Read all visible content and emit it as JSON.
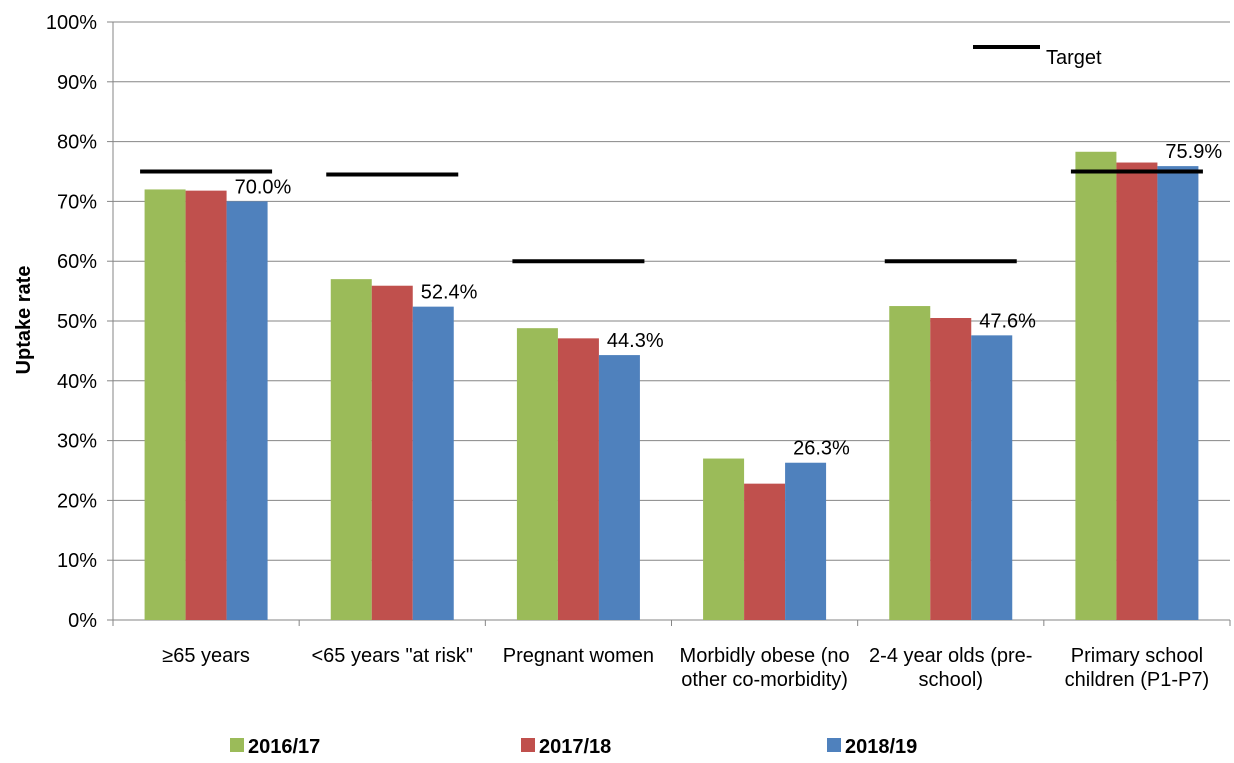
{
  "chart_data": {
    "type": "bar",
    "y_label": "Uptake rate",
    "categories": [
      "≥65 years",
      "<65 years \"at risk\"",
      "Pregnant women",
      "Morbidly obese (no other co-morbidity)",
      "2-4 year olds (pre-school)",
      "Primary school children (P1-P7)"
    ],
    "series": [
      {
        "name": "2016/17",
        "color": "#9bbb59",
        "values": [
          72.0,
          57.0,
          48.8,
          27.0,
          52.5,
          78.3
        ]
      },
      {
        "name": "2017/18",
        "color": "#c0504d",
        "values": [
          71.8,
          55.9,
          47.1,
          22.8,
          50.5,
          76.5
        ]
      },
      {
        "name": "2018/19",
        "color": "#4f81bd",
        "values": [
          70.0,
          52.4,
          44.3,
          26.3,
          47.6,
          75.9
        ],
        "value_labels": [
          "70.0%",
          "52.4%",
          "44.3%",
          "26.3%",
          "47.6%",
          "75.9%"
        ]
      }
    ],
    "targets": {
      "name": "Target",
      "color": "#000000",
      "values": [
        75,
        74.5,
        60,
        null,
        60,
        75
      ]
    },
    "ylim": [
      0,
      100
    ],
    "yticks": [
      {
        "value": 0,
        "label": "0%"
      },
      {
        "value": 10,
        "label": "10%"
      },
      {
        "value": 20,
        "label": "20%"
      },
      {
        "value": 30,
        "label": "30%"
      },
      {
        "value": 40,
        "label": "40%"
      },
      {
        "value": 50,
        "label": "50%"
      },
      {
        "value": 60,
        "label": "60%"
      },
      {
        "value": 70,
        "label": "70%"
      },
      {
        "value": 80,
        "label": "80%"
      },
      {
        "value": 90,
        "label": "90%"
      },
      {
        "value": 100,
        "label": "100%"
      }
    ],
    "grid": true
  }
}
